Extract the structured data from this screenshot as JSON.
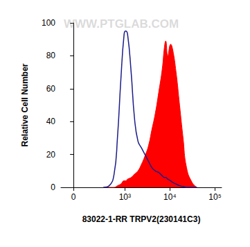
{
  "chart_data": {
    "type": "line",
    "x_label": "83022-1-RR TRPV2(230141C3)",
    "y_label": "Relative Cell Number",
    "annotations": [
      "WWW.PTGLAB.COM"
    ],
    "log": "x",
    "grid": false,
    "x": [
      320,
      440,
      570,
      680,
      810,
      960,
      1040,
      1150,
      1380,
      1640,
      1960,
      2340,
      2790,
      3330,
      3980,
      4750,
      5670,
      6770,
      7540,
      8080,
      8980,
      10400,
      11500,
      13700,
      16400,
      19600,
      23400,
      31000,
      39800
    ],
    "series": [
      {
        "color": "#1c1c8a",
        "type": "line",
        "values": [
          0,
          1,
          8,
          30,
          65,
          93,
          95,
          93,
          70,
          42,
          28,
          24,
          20,
          16,
          12,
          10,
          9,
          7,
          6,
          6,
          5,
          4,
          3,
          2,
          1,
          0.5,
          0,
          0,
          0
        ]
      },
      {
        "color": "#ff0000",
        "type": "area",
        "values": [
          0,
          0,
          0,
          1,
          2,
          4,
          4,
          5,
          6,
          8,
          10,
          14,
          19,
          25,
          35,
          45,
          58,
          72,
          85,
          89,
          80,
          87,
          84,
          70,
          50,
          30,
          12,
          3,
          0
        ]
      }
    ],
    "xlim": [
      -100,
      140000
    ],
    "xticks": [
      0,
      {
        "value": 1000,
        "label": "10³"
      },
      {
        "value": 10000,
        "label": "10⁴"
      },
      {
        "value": 100000,
        "label": "10⁵"
      }
    ],
    "ylim": [
      0,
      100
    ],
    "yticks": [
      0,
      20,
      40,
      60,
      80,
      100
    ]
  }
}
